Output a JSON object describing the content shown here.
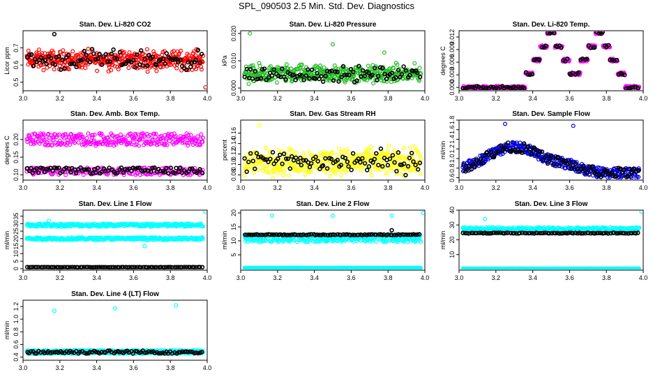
{
  "page_title": "SPL_090503  2.5 Min. Std. Dev. Diagnostics",
  "colors": {
    "red": "#ff0000",
    "green": "#22bb22",
    "magenta": "#ff00ff",
    "yellow": "#ffff00",
    "blue": "#0000dd",
    "cyan": "#00ffff",
    "black": "#000000"
  },
  "chart_data": [
    {
      "type": "scatter",
      "title": "Stan. Dev. Li-820 CO2",
      "ylabel": "Licor ppm",
      "xlim": [
        3.0,
        4.0
      ],
      "ylim": [
        0.45,
        0.8
      ],
      "xticks": [
        "3.0",
        "3.2",
        "3.4",
        "3.6",
        "3.8",
        "4.0"
      ],
      "yticks": [
        0.5,
        0.6,
        0.7
      ],
      "ytick_labels": [
        "0.5",
        "0.6",
        "0.7"
      ],
      "series": [
        {
          "name": "primary",
          "color": "red",
          "pattern": "noisy",
          "base": 0.63,
          "spread": 0.1,
          "count": 420,
          "outliers": [
            [
              3.99,
              0.47
            ]
          ]
        },
        {
          "name": "reference",
          "color": "black",
          "pattern": "noisy",
          "base": 0.63,
          "spread": 0.1,
          "count": 90,
          "outliers": [
            [
              3.17,
              0.78
            ]
          ]
        }
      ]
    },
    {
      "type": "scatter",
      "title": "Stan. Dev. Li-820 Pressure",
      "ylabel": "kPa",
      "xlim": [
        3.0,
        4.0
      ],
      "ylim": [
        -0.001,
        0.021
      ],
      "xticks": [
        "3.0",
        "3.2",
        "3.4",
        "3.6",
        "3.8",
        "4.0"
      ],
      "yticks": [
        0.0,
        0.01,
        0.02
      ],
      "ytick_labels": [
        "0.000",
        "0.010",
        "0.020"
      ],
      "series": [
        {
          "name": "primary",
          "color": "green",
          "pattern": "noisy",
          "base": 0.005,
          "spread": 0.006,
          "count": 420,
          "outliers": [
            [
              3.05,
              0.02
            ],
            [
              3.5,
              0.016
            ],
            [
              3.78,
              0.013
            ]
          ]
        },
        {
          "name": "reference",
          "color": "black",
          "pattern": "noisy",
          "base": 0.005,
          "spread": 0.005,
          "count": 90,
          "outliers": []
        }
      ]
    },
    {
      "type": "scatter",
      "title": "Stan. Dev. Li-820 Temp.",
      "ylabel": "degrees C",
      "xlim": [
        3.0,
        4.0
      ],
      "ylim": [
        -0.0008,
        0.0135
      ],
      "xticks": [
        "3.0",
        "3.2",
        "3.4",
        "3.6",
        "3.8",
        "4.0"
      ],
      "yticks": [
        0.0,
        0.003,
        0.006,
        0.009,
        0.012
      ],
      "ytick_labels": [
        "0.000",
        "0.003",
        "0.006",
        "0.009",
        "0.012"
      ],
      "series": [
        {
          "name": "primary",
          "color": "magenta",
          "pattern": "double_hump",
          "base": 0.0,
          "spread": 0.013,
          "count": 420,
          "outliers": []
        },
        {
          "name": "reference",
          "color": "black",
          "pattern": "double_hump",
          "base": 0.0,
          "spread": 0.013,
          "count": 90,
          "outliers": []
        }
      ]
    },
    {
      "type": "scatter",
      "title": "Stan. Dev. Amb. Box Temp.",
      "ylabel": "degrees C",
      "xlim": [
        3.0,
        4.0
      ],
      "ylim": [
        0.085,
        0.255
      ],
      "xticks": [
        "3.0",
        "3.2",
        "3.4",
        "3.6",
        "3.8",
        "4.0"
      ],
      "yticks": [
        0.1,
        0.15,
        0.2
      ],
      "ytick_labels": [
        "0.10",
        "0.15",
        "0.20"
      ],
      "series": [
        {
          "name": "upper",
          "color": "magenta",
          "pattern": "band",
          "base": 0.2,
          "spread": 0.025,
          "count": 300,
          "outliers": []
        },
        {
          "name": "lower",
          "color": "magenta",
          "pattern": "band",
          "base": 0.11,
          "spread": 0.015,
          "count": 200,
          "outliers": []
        },
        {
          "name": "reference",
          "color": "black",
          "pattern": "band",
          "base": 0.112,
          "spread": 0.012,
          "count": 90,
          "outliers": []
        }
      ]
    },
    {
      "type": "scatter",
      "title": "Stan. Dev. Gas Stream RH",
      "ylabel": "percent",
      "xlim": [
        3.0,
        4.0
      ],
      "ylim": [
        0.07,
        0.185
      ],
      "xticks": [
        "3.0",
        "3.2",
        "3.4",
        "3.6",
        "3.8",
        "4.0"
      ],
      "yticks": [
        0.08,
        0.1,
        0.12,
        0.14,
        0.16
      ],
      "ytick_labels": [
        "0.08",
        "0.10",
        "0.12",
        "0.14",
        "0.16"
      ],
      "series": [
        {
          "name": "primary",
          "color": "yellow",
          "pattern": "noisy",
          "base": 0.105,
          "spread": 0.045,
          "count": 420,
          "outliers": [
            [
              3.1,
              0.175
            ]
          ]
        },
        {
          "name": "reference",
          "color": "black",
          "pattern": "noisy",
          "base": 0.105,
          "spread": 0.04,
          "count": 90,
          "outliers": []
        }
      ]
    },
    {
      "type": "scatter",
      "title": "Stan. Dev. Sample Flow",
      "ylabel": "ml/min",
      "xlim": [
        3.0,
        4.0
      ],
      "ylim": [
        0.55,
        1.8
      ],
      "xticks": [
        "3.0",
        "3.2",
        "3.4",
        "3.6",
        "3.8",
        "4.0"
      ],
      "yticks": [
        0.6,
        0.8,
        1.0,
        1.2,
        1.4,
        1.6,
        1.8
      ],
      "ytick_labels": [
        "0.6",
        "0.8",
        "1.0",
        "1.2",
        "1.4",
        "1.6",
        "1.8"
      ],
      "series": [
        {
          "name": "primary",
          "color": "blue",
          "pattern": "single_hump",
          "base": 0.7,
          "spread": 0.6,
          "count": 420,
          "outliers": [
            [
              3.25,
              1.72
            ],
            [
              3.62,
              1.68
            ]
          ]
        },
        {
          "name": "reference",
          "color": "black",
          "pattern": "single_hump",
          "base": 0.7,
          "spread": 0.6,
          "count": 90,
          "outliers": []
        }
      ]
    },
    {
      "type": "scatter",
      "title": "Stan. Dev. Line 1 Flow",
      "ylabel": "ml/min",
      "xlim": [
        3.0,
        4.0
      ],
      "ylim": [
        -1,
        39
      ],
      "xticks": [
        "3.0",
        "3.2",
        "3.4",
        "3.6",
        "3.8",
        "4.0"
      ],
      "yticks": [
        0,
        5,
        10,
        15,
        20,
        25,
        30,
        35
      ],
      "ytick_labels": [
        "0",
        "5",
        "10",
        "15",
        "20",
        "25",
        "30",
        "35"
      ],
      "series": [
        {
          "name": "upper",
          "color": "cyan",
          "pattern": "band",
          "base": 29,
          "spread": 1.5,
          "count": 300,
          "outliers": [
            [
              3.14,
              32
            ],
            [
              3.99,
              38
            ]
          ]
        },
        {
          "name": "middle",
          "color": "cyan",
          "pattern": "band",
          "base": 20,
          "spread": 1.2,
          "count": 300,
          "outliers": [
            [
              3.66,
              15
            ]
          ]
        },
        {
          "name": "reference",
          "color": "black",
          "pattern": "flat",
          "base": 1,
          "spread": 0.1,
          "count": 90,
          "outliers": []
        }
      ]
    },
    {
      "type": "scatter",
      "title": "Stan. Dev. Line 2 Flow",
      "ylabel": "ml/min",
      "xlim": [
        3.0,
        4.0
      ],
      "ylim": [
        -0.5,
        21
      ],
      "xticks": [
        "3.0",
        "3.2",
        "3.4",
        "3.6",
        "3.8",
        "4.0"
      ],
      "yticks": [
        5,
        10,
        15,
        20
      ],
      "ytick_labels": [
        "5",
        "10",
        "15",
        "20"
      ],
      "series": [
        {
          "name": "upper",
          "color": "cyan",
          "pattern": "band",
          "base": 11,
          "spread": 2,
          "count": 350,
          "outliers": [
            [
              3.17,
              19
            ],
            [
              3.5,
              19
            ],
            [
              3.82,
              19
            ],
            [
              3.99,
              20
            ]
          ]
        },
        {
          "name": "floor",
          "color": "cyan",
          "pattern": "flat",
          "base": 0.3,
          "spread": 0.1,
          "count": 300,
          "outliers": []
        },
        {
          "name": "reference",
          "color": "black",
          "pattern": "flat",
          "base": 12.2,
          "spread": 0.3,
          "count": 90,
          "outliers": [
            [
              3.82,
              13.8
            ]
          ]
        }
      ]
    },
    {
      "type": "scatter",
      "title": "Stan. Dev. Line 3 Flow",
      "ylabel": "ml/min",
      "xlim": [
        3.0,
        4.0
      ],
      "ylim": [
        -0.5,
        40
      ],
      "xticks": [
        "3.0",
        "3.2",
        "3.4",
        "3.6",
        "3.8",
        "4.0"
      ],
      "yticks": [
        10,
        20,
        30,
        40
      ],
      "ytick_labels": [
        "10",
        "20",
        "30",
        "40"
      ],
      "series": [
        {
          "name": "upper",
          "color": "cyan",
          "pattern": "band",
          "base": 27,
          "spread": 2,
          "count": 350,
          "outliers": [
            [
              3.14,
              34
            ],
            [
              3.99,
              39
            ]
          ]
        },
        {
          "name": "floor",
          "color": "cyan",
          "pattern": "flat",
          "base": 0.5,
          "spread": 0.1,
          "count": 300,
          "outliers": []
        },
        {
          "name": "reference",
          "color": "black",
          "pattern": "flat",
          "base": 24.5,
          "spread": 0.5,
          "count": 90,
          "outliers": []
        }
      ]
    },
    {
      "type": "scatter",
      "title": "Stan. Dev. Line 4 (LT) Flow",
      "ylabel": "ml/min",
      "xlim": [
        3.0,
        4.0
      ],
      "ylim": [
        0.35,
        1.3
      ],
      "xticks": [
        "3.0",
        "3.2",
        "3.4",
        "3.6",
        "3.8",
        "4.0"
      ],
      "yticks": [
        0.4,
        0.6,
        0.8,
        1.0,
        1.2
      ],
      "ytick_labels": [
        "0.4",
        "0.6",
        "0.8",
        "1.0",
        "1.2"
      ],
      "series": [
        {
          "name": "primary",
          "color": "cyan",
          "pattern": "band",
          "base": 0.48,
          "spread": 0.04,
          "count": 420,
          "outliers": [
            [
              3.17,
              1.13
            ],
            [
              3.5,
              1.17
            ],
            [
              3.83,
              1.22
            ]
          ]
        },
        {
          "name": "reference",
          "color": "black",
          "pattern": "band",
          "base": 0.48,
          "spread": 0.035,
          "count": 90,
          "outliers": []
        }
      ]
    }
  ]
}
